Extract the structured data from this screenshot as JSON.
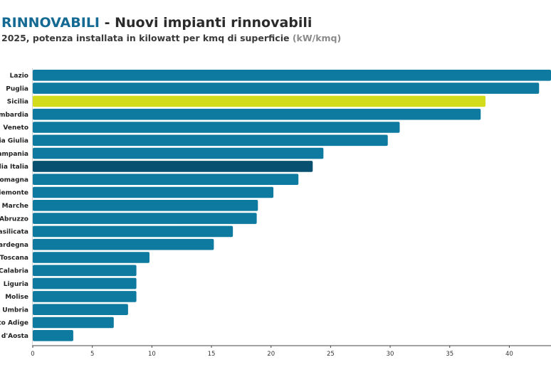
{
  "header": {
    "title_accent": "RINNOVABILI",
    "title_rest": " - Nuovi impianti rinnovabili",
    "subtitle_main": "2025, potenza installata in kilowatt per kmq di superficie ",
    "subtitle_unit": "(kW/kmq)"
  },
  "colors": {
    "default": "#0f7a9f",
    "highlight": "#d2dc1a",
    "average": "#08506f",
    "axis": "#444444"
  },
  "chart_data": {
    "type": "bar",
    "orientation": "horizontal",
    "categories": [
      "Lazio",
      "Puglia",
      "Sicilia",
      "mbardia",
      "Veneto",
      "ia Giulia",
      "ampania",
      "dia Italia",
      "omagna",
      "iemonte",
      "Marche",
      "Abruzzo",
      "asilicata",
      "ardegna",
      "Toscana",
      "Calabria",
      "Liguria",
      "Molise",
      "Umbria",
      "to Adige",
      "d'Aosta"
    ],
    "values": [
      44.2,
      42.5,
      38.0,
      37.6,
      30.8,
      29.8,
      24.4,
      23.5,
      22.3,
      20.2,
      18.9,
      18.8,
      16.8,
      15.2,
      9.8,
      8.7,
      8.7,
      8.7,
      8.0,
      6.8,
      3.4
    ],
    "highlight": [
      "Sicilia"
    ],
    "average": [
      "dia Italia"
    ],
    "xlim": [
      0,
      43.5
    ],
    "xticks": [
      0,
      5,
      10,
      15,
      20,
      25,
      30,
      35,
      40
    ],
    "grid": false
  }
}
